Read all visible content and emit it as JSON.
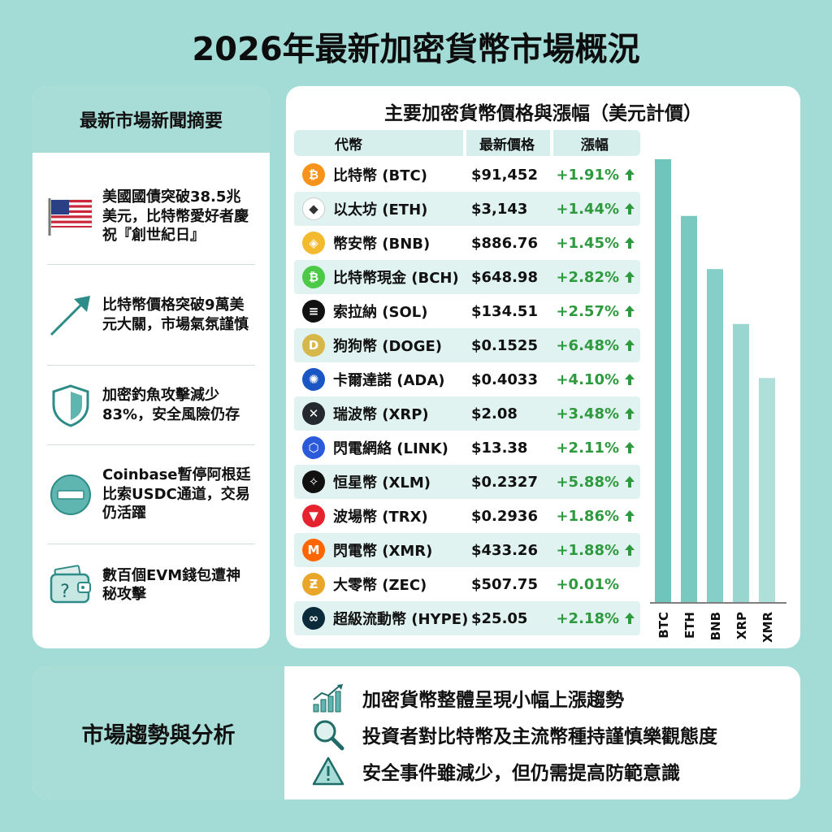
{
  "title": "2026年最新加密貨幣市場概況",
  "news": {
    "header": "最新市場新聞摘要",
    "items": [
      {
        "icon": "us-flag-icon",
        "text": "美國國債突破38.5兆美元，比特幣愛好者慶祝『創世紀日』"
      },
      {
        "icon": "rising-arrow-icon",
        "text": "比特幣價格突破9萬美元大關，市場氣氛謹慎"
      },
      {
        "icon": "shield-icon",
        "text": "加密釣魚攻擊減少83%，安全風險仍存"
      },
      {
        "icon": "minus-circle-icon",
        "text": "Coinbase暫停阿根廷比索USDC通道，交易仍活躍"
      },
      {
        "icon": "wallet-question-icon",
        "text": "數百個EVM錢包遭神秘攻擊"
      }
    ]
  },
  "prices": {
    "title": "主要加密貨幣價格與漲幅（美元計價）",
    "headers": {
      "coin": "代幣",
      "price": "最新價格",
      "change": "漲幅"
    },
    "rows": [
      {
        "name": "比特幣 (BTC)",
        "price": "$91,452",
        "change": "+1.91%",
        "up": true,
        "color": "#f7931a",
        "glyph": "₿"
      },
      {
        "name": "以太坊 (ETH)",
        "price": "$3,143",
        "change": "+1.44%",
        "up": true,
        "color": "#ffffff",
        "glyph": "◆"
      },
      {
        "name": "幣安幣 (BNB)",
        "price": "$886.76",
        "change": "+1.45%",
        "up": true,
        "color": "#f3ba2f",
        "glyph": "◈"
      },
      {
        "name": "比特幣現金 (BCH)",
        "price": "$648.98",
        "change": "+2.82%",
        "up": true,
        "color": "#4cc947",
        "glyph": "₿"
      },
      {
        "name": "索拉納 (SOL)",
        "price": "$134.51",
        "change": "+2.57%",
        "up": true,
        "color": "#111111",
        "glyph": "≡"
      },
      {
        "name": "狗狗幣 (DOGE)",
        "price": "$0.1525",
        "change": "+6.48%",
        "up": true,
        "color": "#d6b84a",
        "glyph": "D"
      },
      {
        "name": "卡爾達諾 (ADA)",
        "price": "$0.4033",
        "change": "+4.10%",
        "up": true,
        "color": "#1a55c4",
        "glyph": "✺"
      },
      {
        "name": "瑞波幣 (XRP)",
        "price": "$2.08",
        "change": "+3.48%",
        "up": true,
        "color": "#23292f",
        "glyph": "✕"
      },
      {
        "name": "閃電網絡 (LINK)",
        "price": "$13.38",
        "change": "+2.11%",
        "up": true,
        "color": "#2a5ada",
        "glyph": "⬡"
      },
      {
        "name": "恒星幣 (XLM)",
        "price": "$0.2327",
        "change": "+5.88%",
        "up": true,
        "color": "#111111",
        "glyph": "✧"
      },
      {
        "name": "波場幣 (TRX)",
        "price": "$0.2936",
        "change": "+1.86%",
        "up": true,
        "color": "#e5232e",
        "glyph": "▼"
      },
      {
        "name": "閃電幣 (XMR)",
        "price": "$433.26",
        "change": "+1.88%",
        "up": true,
        "color": "#ff6600",
        "glyph": "M"
      },
      {
        "name": "大零幣 (ZEC)",
        "price": "$507.75",
        "change": "+0.01%",
        "up": false,
        "color": "#e8a62b",
        "glyph": "Ƶ"
      },
      {
        "name": "超級流動幣 (HYPE)",
        "price": "$25.05",
        "change": "+2.18%",
        "up": true,
        "color": "#0b2a3a",
        "glyph": "∞"
      }
    ]
  },
  "chart_data": {
    "type": "bar",
    "categories": [
      "BTC",
      "ETH",
      "BNB",
      "XRP",
      "XMR"
    ],
    "values": [
      100,
      87.2,
      75.2,
      62.8,
      50.6
    ],
    "colors": [
      "#6fc4bc",
      "#79c9c1",
      "#86cfc8",
      "#98d6cf",
      "#aedfd9"
    ]
  },
  "trends": {
    "label": "市場趨勢與分析",
    "items": [
      {
        "icon": "growth-chart-icon",
        "text": "加密貨幣整體呈現小幅上漲趨勢"
      },
      {
        "icon": "magnifier-icon",
        "text": "投資者對比特幣及主流幣種持謹慎樂觀態度"
      },
      {
        "icon": "warning-icon",
        "text": "安全事件雖減少，但仍需提高防範意識"
      }
    ]
  },
  "colors": {
    "accent": "#a8dcd6",
    "up_green": "#2e9a3e",
    "bg": "#a3dbd6"
  }
}
